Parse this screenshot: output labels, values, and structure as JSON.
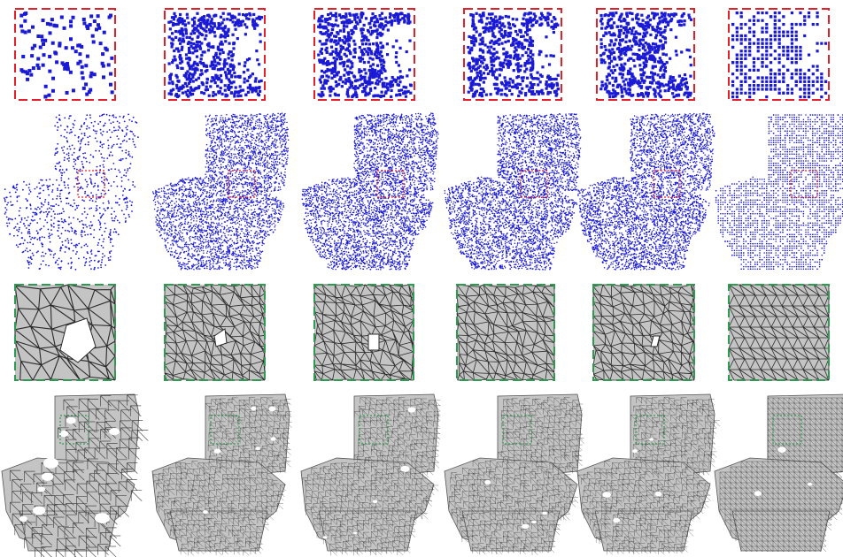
{
  "figure": {
    "columns": 6,
    "rows": [
      {
        "kind": "point-zoom",
        "frame": "red-dashed"
      },
      {
        "kind": "point-cloud",
        "frame": "red-dotted-zoom-box"
      },
      {
        "kind": "mesh-zoom",
        "frame": "green-dashed"
      },
      {
        "kind": "mesh",
        "frame": "green-dotted-zoom-box"
      }
    ],
    "columns_detail": [
      {
        "density": "sparse",
        "holes": "large"
      },
      {
        "density": "dense",
        "holes": "small"
      },
      {
        "density": "dense",
        "holes": "small"
      },
      {
        "density": "dense",
        "holes": "none"
      },
      {
        "density": "dense",
        "holes": "tiny"
      },
      {
        "density": "regular-grid",
        "holes": "none"
      }
    ],
    "colors": {
      "points": "#1a1ad6",
      "red_frame": "#e0202a",
      "green_frame": "#2e9a52",
      "mesh_fill": "#c4c4c4",
      "mesh_edge": "#2a2a2a"
    }
  }
}
